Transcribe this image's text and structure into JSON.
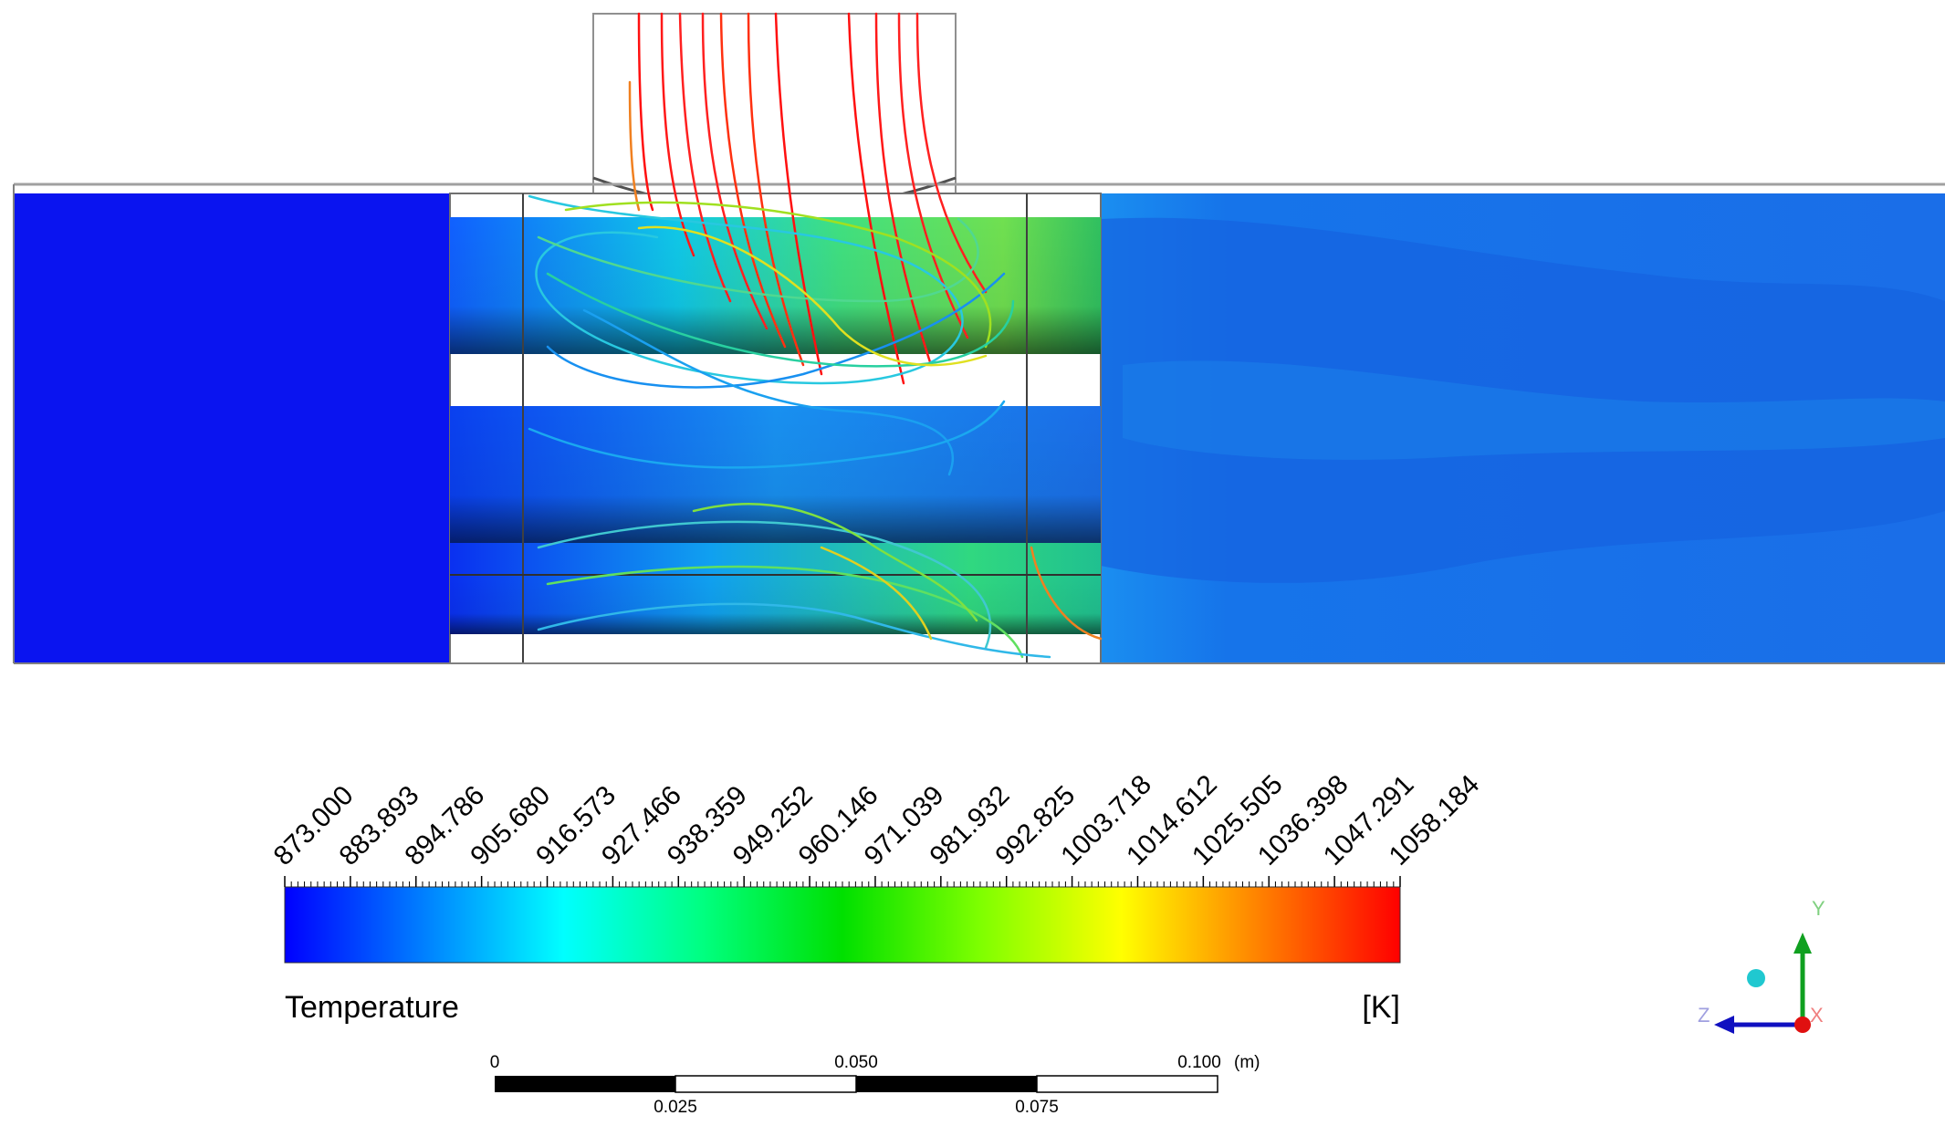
{
  "legend": {
    "variable": "Temperature",
    "unit": "[K]",
    "min": 873.0,
    "max": 1058.184,
    "tick_labels": [
      "873.000",
      "883.893",
      "894.786",
      "905.680",
      "916.573",
      "927.466",
      "938.359",
      "949.252",
      "960.146",
      "971.039",
      "981.932",
      "992.825",
      "1003.718",
      "1014.612",
      "1025.505",
      "1036.398",
      "1047.291",
      "1058.184"
    ],
    "colormap": [
      "#0000ff",
      "#0080ff",
      "#00ffff",
      "#00ff80",
      "#00e000",
      "#80ff00",
      "#ffff00",
      "#ff8000",
      "#ff0000"
    ]
  },
  "scale_bar": {
    "labels_top": [
      "0",
      "0.050",
      "0.100"
    ],
    "labels_bottom": [
      "0.025",
      "0.075"
    ],
    "unit": "(m)"
  },
  "axes": {
    "y": "Y",
    "z": "Z",
    "x": "X"
  },
  "colors": {
    "cold_region": "#0a14f0",
    "outlet_region": "#1868e6",
    "inlet_jet": "#ff1010",
    "wall": "#888888"
  }
}
